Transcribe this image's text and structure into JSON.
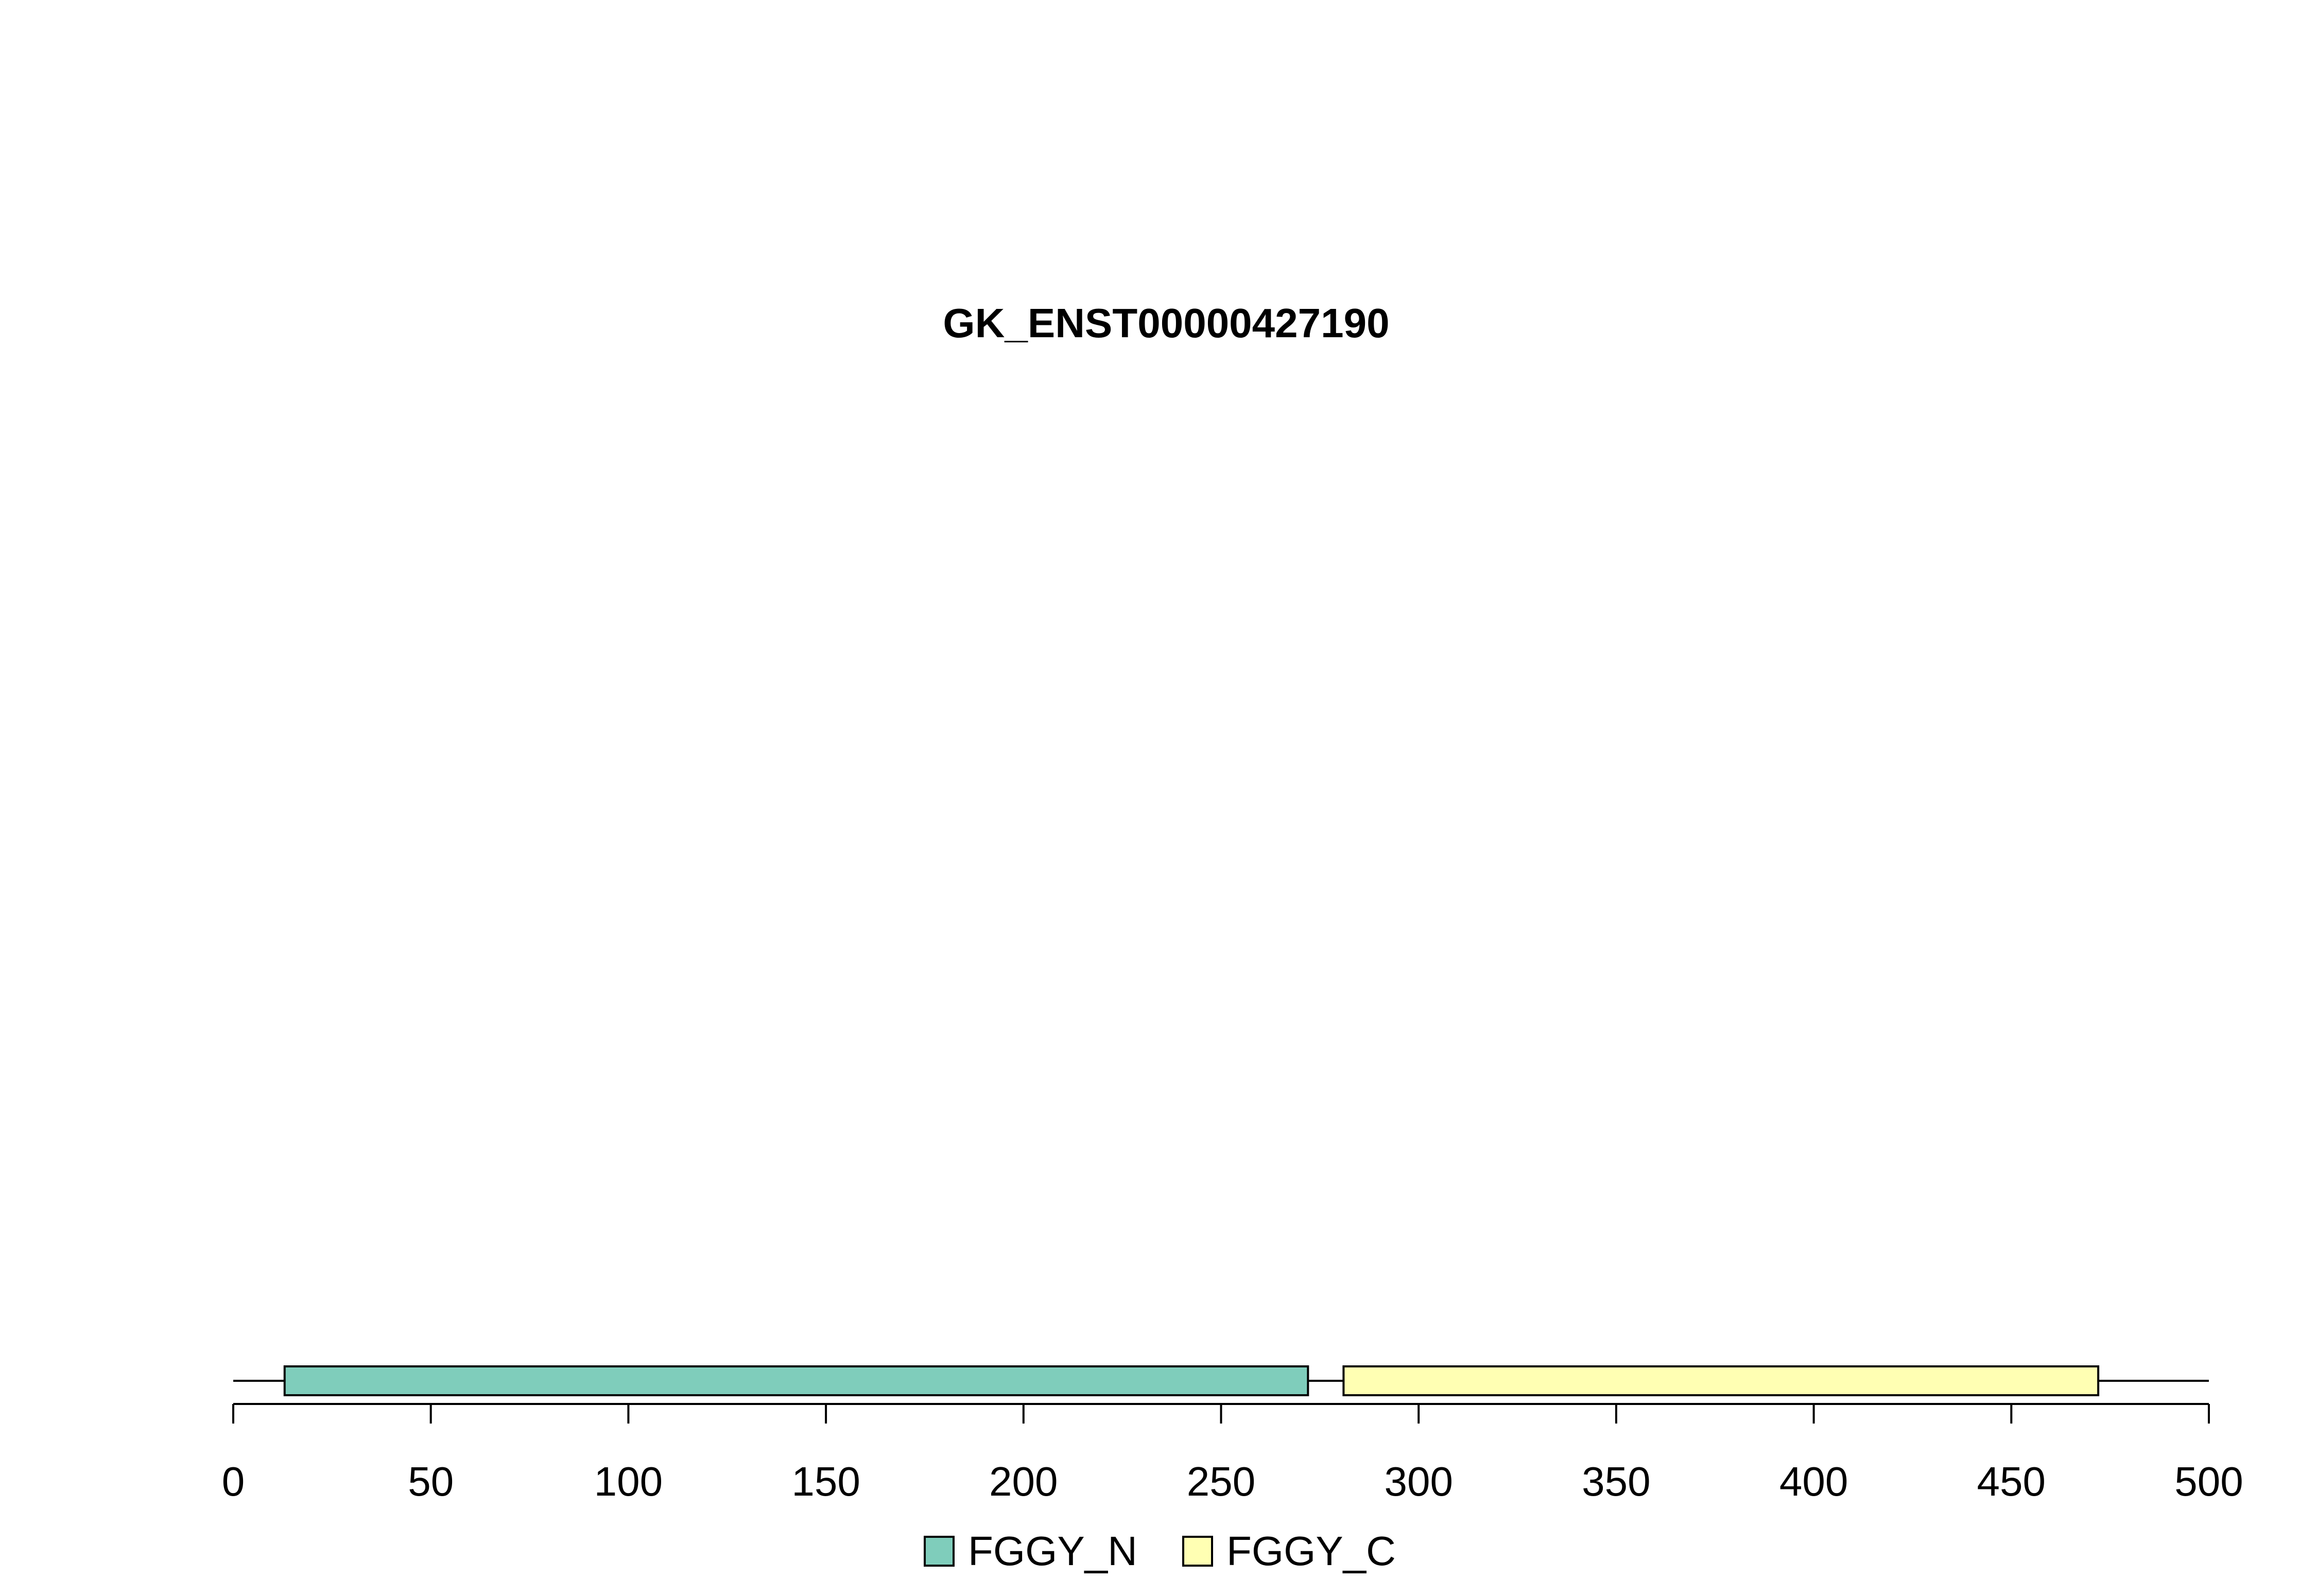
{
  "title": "GK_ENST00000427190",
  "chart_data": {
    "type": "domain-track",
    "title": "GK_ENST00000427190",
    "protein_length": 500,
    "xlim": [
      0,
      500
    ],
    "x_ticks": [
      0,
      50,
      100,
      150,
      200,
      250,
      300,
      350,
      400,
      450,
      500
    ],
    "domains": [
      {
        "name": "FGGY_N",
        "start": 13,
        "end": 272,
        "color": "#7fcdbb"
      },
      {
        "name": "FGGY_C",
        "start": 281,
        "end": 472,
        "color": "#ffffb3"
      }
    ],
    "legend": [
      {
        "label": "FGGY_N",
        "color": "#7fcdbb"
      },
      {
        "label": "FGGY_C",
        "color": "#ffffb3"
      }
    ],
    "legend_position": "bottom-center"
  }
}
